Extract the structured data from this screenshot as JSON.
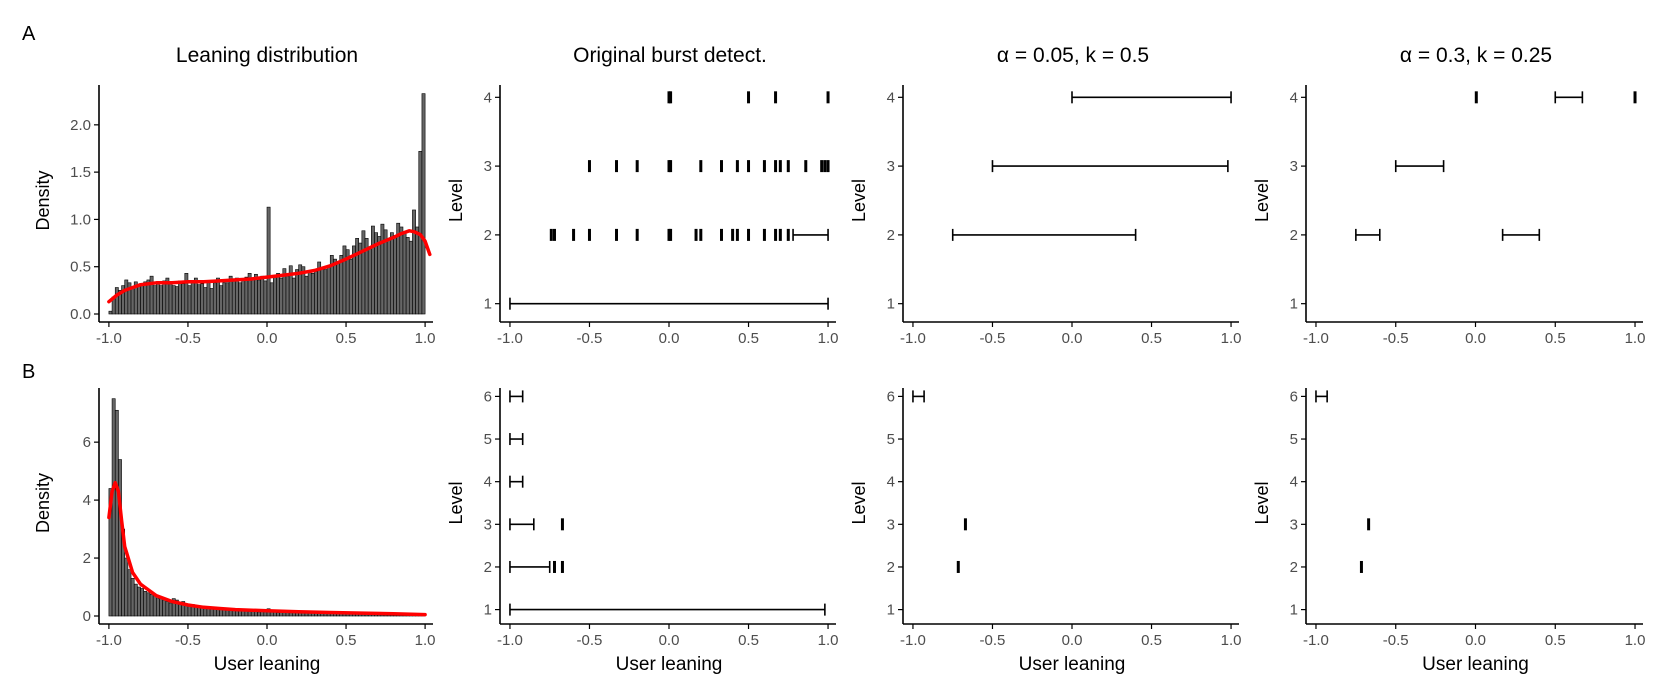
{
  "panel_labels": [
    "A",
    "B"
  ],
  "column_titles": [
    "Leaning distribution",
    "Original burst detect.",
    "α = 0.05, k = 0.5",
    "α = 0.3, k = 0.25"
  ],
  "colors": {
    "bar_fill": "#666666",
    "density_curve": "#ff0000",
    "axis": "#000000",
    "tick_label": "#4d4d4d"
  },
  "chart_data": [
    {
      "type": "bar",
      "panel": "A",
      "title": "Leaning distribution",
      "xlabel": "",
      "ylabel": "Density",
      "xlim": [
        -1.05,
        1.05
      ],
      "ylim": [
        0,
        2.4
      ],
      "xticks": [
        -1.0,
        -0.5,
        0.0,
        0.5,
        1.0
      ],
      "yticks": [
        0.0,
        0.5,
        1.0,
        1.5,
        2.0
      ],
      "bin_start": -1.0,
      "bin_width": 0.02,
      "values": [
        0.03,
        0.18,
        0.28,
        0.25,
        0.3,
        0.36,
        0.33,
        0.28,
        0.34,
        0.31,
        0.3,
        0.34,
        0.36,
        0.4,
        0.3,
        0.32,
        0.3,
        0.35,
        0.38,
        0.33,
        0.3,
        0.29,
        0.35,
        0.32,
        0.43,
        0.3,
        0.33,
        0.38,
        0.31,
        0.32,
        0.28,
        0.35,
        0.27,
        0.33,
        0.38,
        0.3,
        0.33,
        0.33,
        0.4,
        0.35,
        0.38,
        0.33,
        0.37,
        0.39,
        0.43,
        0.37,
        0.42,
        0.36,
        0.4,
        0.35,
        1.13,
        0.33,
        0.4,
        0.43,
        0.38,
        0.48,
        0.4,
        0.51,
        0.38,
        0.47,
        0.52,
        0.5,
        0.4,
        0.46,
        0.43,
        0.45,
        0.55,
        0.48,
        0.47,
        0.51,
        0.62,
        0.58,
        0.55,
        0.62,
        0.72,
        0.68,
        0.58,
        0.72,
        0.8,
        0.75,
        0.88,
        0.8,
        0.7,
        0.93,
        0.86,
        0.82,
        0.95,
        0.89,
        0.8,
        0.86,
        0.83,
        0.96,
        0.92,
        0.87,
        0.81,
        0.77,
        1.1,
        0.92,
        1.72,
        2.33
      ],
      "density_x": [
        -1.0,
        -0.95,
        -0.9,
        -0.8,
        -0.7,
        -0.6,
        -0.5,
        -0.4,
        -0.3,
        -0.2,
        -0.1,
        0.0,
        0.1,
        0.2,
        0.3,
        0.4,
        0.5,
        0.6,
        0.7,
        0.8,
        0.85,
        0.9,
        0.93,
        0.97,
        1.0,
        1.03
      ],
      "density_y": [
        0.13,
        0.2,
        0.25,
        0.31,
        0.33,
        0.33,
        0.34,
        0.34,
        0.35,
        0.36,
        0.37,
        0.39,
        0.41,
        0.43,
        0.46,
        0.51,
        0.58,
        0.66,
        0.74,
        0.81,
        0.85,
        0.88,
        0.87,
        0.84,
        0.77,
        0.63
      ]
    },
    {
      "type": "interval",
      "panel": "A",
      "title": "Original burst detect.",
      "xlabel": "",
      "ylabel": "Level",
      "xlim": [
        -1.05,
        1.05
      ],
      "ylim": [
        0.85,
        4.15
      ],
      "xticks": [
        -1.0,
        -0.5,
        0.0,
        0.5,
        1.0
      ],
      "yticks": [
        1,
        2,
        3,
        4
      ],
      "intervals": [
        {
          "level": 1,
          "start": -1.0,
          "end": 1.0
        },
        {
          "level": 2,
          "start": -0.74,
          "end": -0.74
        },
        {
          "level": 2,
          "start": -0.72,
          "end": -0.72
        },
        {
          "level": 2,
          "start": -0.6,
          "end": -0.6
        },
        {
          "level": 2,
          "start": -0.5,
          "end": -0.5
        },
        {
          "level": 2,
          "start": -0.33,
          "end": -0.33
        },
        {
          "level": 2,
          "start": -0.2,
          "end": -0.2
        },
        {
          "level": 2,
          "start": 0.0,
          "end": 0.0
        },
        {
          "level": 2,
          "start": 0.01,
          "end": 0.01
        },
        {
          "level": 2,
          "start": 0.17,
          "end": 0.17
        },
        {
          "level": 2,
          "start": 0.2,
          "end": 0.2
        },
        {
          "level": 2,
          "start": 0.33,
          "end": 0.33
        },
        {
          "level": 2,
          "start": 0.4,
          "end": 0.4
        },
        {
          "level": 2,
          "start": 0.43,
          "end": 0.43
        },
        {
          "level": 2,
          "start": 0.5,
          "end": 0.5
        },
        {
          "level": 2,
          "start": 0.6,
          "end": 0.6
        },
        {
          "level": 2,
          "start": 0.67,
          "end": 0.67
        },
        {
          "level": 2,
          "start": 0.7,
          "end": 0.7
        },
        {
          "level": 2,
          "start": 0.75,
          "end": 0.75
        },
        {
          "level": 2,
          "start": 0.78,
          "end": 1.0
        },
        {
          "level": 3,
          "start": -0.5,
          "end": -0.5
        },
        {
          "level": 3,
          "start": -0.33,
          "end": -0.33
        },
        {
          "level": 3,
          "start": -0.2,
          "end": -0.2
        },
        {
          "level": 3,
          "start": 0.0,
          "end": 0.0
        },
        {
          "level": 3,
          "start": 0.01,
          "end": 0.01
        },
        {
          "level": 3,
          "start": 0.2,
          "end": 0.2
        },
        {
          "level": 3,
          "start": 0.33,
          "end": 0.33
        },
        {
          "level": 3,
          "start": 0.43,
          "end": 0.43
        },
        {
          "level": 3,
          "start": 0.5,
          "end": 0.5
        },
        {
          "level": 3,
          "start": 0.6,
          "end": 0.6
        },
        {
          "level": 3,
          "start": 0.67,
          "end": 0.67
        },
        {
          "level": 3,
          "start": 0.7,
          "end": 0.7
        },
        {
          "level": 3,
          "start": 0.75,
          "end": 0.75
        },
        {
          "level": 3,
          "start": 0.86,
          "end": 0.86
        },
        {
          "level": 3,
          "start": 0.96,
          "end": 0.96
        },
        {
          "level": 3,
          "start": 0.98,
          "end": 0.98
        },
        {
          "level": 3,
          "start": 1.0,
          "end": 1.0
        },
        {
          "level": 4,
          "start": 0.0,
          "end": 0.0
        },
        {
          "level": 4,
          "start": 0.01,
          "end": 0.01
        },
        {
          "level": 4,
          "start": 0.5,
          "end": 0.5
        },
        {
          "level": 4,
          "start": 0.67,
          "end": 0.67
        },
        {
          "level": 4,
          "start": 1.0,
          "end": 1.0
        }
      ]
    },
    {
      "type": "interval",
      "panel": "A",
      "title": "α = 0.05, k = 0.5",
      "xlabel": "",
      "ylabel": "Level",
      "xlim": [
        -1.05,
        1.05
      ],
      "ylim": [
        0.85,
        4.15
      ],
      "xticks": [
        -1.0,
        -0.5,
        0.0,
        0.5,
        1.0
      ],
      "yticks": [
        1,
        2,
        3,
        4
      ],
      "intervals": [
        {
          "level": 2,
          "start": -0.75,
          "end": 0.4
        },
        {
          "level": 3,
          "start": -0.5,
          "end": 0.98
        },
        {
          "level": 4,
          "start": 0.0,
          "end": 1.0
        }
      ]
    },
    {
      "type": "interval",
      "panel": "A",
      "title": "α = 0.3, k = 0.25",
      "xlabel": "",
      "ylabel": "Level",
      "xlim": [
        -1.05,
        1.05
      ],
      "ylim": [
        0.85,
        4.15
      ],
      "xticks": [
        -1.0,
        -0.5,
        0.0,
        0.5,
        1.0
      ],
      "yticks": [
        1,
        2,
        3,
        4
      ],
      "intervals": [
        {
          "level": 2,
          "start": -0.75,
          "end": -0.6
        },
        {
          "level": 2,
          "start": 0.17,
          "end": 0.4
        },
        {
          "level": 3,
          "start": -0.5,
          "end": -0.2
        },
        {
          "level": 4,
          "start": 0.0,
          "end": 0.01
        },
        {
          "level": 4,
          "start": 0.5,
          "end": 0.67
        },
        {
          "level": 4,
          "start": 1.0,
          "end": 1.0
        }
      ]
    },
    {
      "type": "bar",
      "panel": "B",
      "title": "",
      "xlabel": "User leaning",
      "ylabel": "Density",
      "xlim": [
        -1.05,
        1.05
      ],
      "ylim": [
        0,
        7.8
      ],
      "xticks": [
        -1.0,
        -0.5,
        0.0,
        0.5,
        1.0
      ],
      "yticks": [
        0,
        2,
        4,
        6
      ],
      "bin_start": -1.0,
      "bin_width": 0.02,
      "values": [
        4.4,
        7.5,
        7.1,
        5.4,
        3.0,
        2.0,
        1.6,
        1.3,
        1.1,
        1.0,
        0.95,
        0.85,
        0.8,
        0.75,
        0.7,
        0.6,
        0.65,
        0.55,
        0.5,
        0.45,
        0.6,
        0.55,
        0.4,
        0.5,
        0.42,
        0.35,
        0.4,
        0.32,
        0.3,
        0.35,
        0.25,
        0.3,
        0.28,
        0.25,
        0.25,
        0.3,
        0.22,
        0.25,
        0.2,
        0.2,
        0.18,
        0.2,
        0.17,
        0.22,
        0.16,
        0.15,
        0.18,
        0.14,
        0.15,
        0.14,
        0.25,
        0.13,
        0.14,
        0.12,
        0.13,
        0.12,
        0.12,
        0.11,
        0.13,
        0.11,
        0.1,
        0.12,
        0.1,
        0.11,
        0.1,
        0.12,
        0.1,
        0.09,
        0.1,
        0.09,
        0.08,
        0.1,
        0.08,
        0.08,
        0.09,
        0.08,
        0.07,
        0.08,
        0.07,
        0.07,
        0.08,
        0.07,
        0.06,
        0.07,
        0.06,
        0.06,
        0.07,
        0.06,
        0.06,
        0.05,
        0.06,
        0.05,
        0.05,
        0.06,
        0.05,
        0.05,
        0.04,
        0.05,
        0.04,
        0.04
      ],
      "density_x": [
        -1.0,
        -0.98,
        -0.96,
        -0.94,
        -0.92,
        -0.9,
        -0.85,
        -0.8,
        -0.75,
        -0.7,
        -0.6,
        -0.5,
        -0.4,
        -0.3,
        -0.2,
        0.0,
        0.2,
        0.4,
        0.6,
        0.8,
        1.0
      ],
      "density_y": [
        3.4,
        4.3,
        4.6,
        4.3,
        3.3,
        2.4,
        1.5,
        1.1,
        0.9,
        0.7,
        0.5,
        0.38,
        0.3,
        0.26,
        0.22,
        0.18,
        0.15,
        0.12,
        0.1,
        0.08,
        0.05
      ]
    },
    {
      "type": "interval",
      "panel": "B",
      "title": "",
      "xlabel": "User leaning",
      "ylabel": "Level",
      "xlim": [
        -1.05,
        1.05
      ],
      "ylim": [
        0.85,
        6.15
      ],
      "xticks": [
        -1.0,
        -0.5,
        0.0,
        0.5,
        1.0
      ],
      "yticks": [
        1,
        2,
        3,
        4,
        5,
        6
      ],
      "intervals": [
        {
          "level": 1,
          "start": -1.0,
          "end": 0.98
        },
        {
          "level": 2,
          "start": -1.0,
          "end": -0.75
        },
        {
          "level": 2,
          "start": -0.72,
          "end": -0.72
        },
        {
          "level": 2,
          "start": -0.67,
          "end": -0.67
        },
        {
          "level": 3,
          "start": -1.0,
          "end": -0.85
        },
        {
          "level": 3,
          "start": -0.67,
          "end": -0.67
        },
        {
          "level": 4,
          "start": -1.0,
          "end": -0.92
        },
        {
          "level": 5,
          "start": -1.0,
          "end": -0.92
        },
        {
          "level": 6,
          "start": -1.0,
          "end": -0.92
        }
      ]
    },
    {
      "type": "interval",
      "panel": "B",
      "title": "",
      "xlabel": "User leaning",
      "ylabel": "Level",
      "xlim": [
        -1.05,
        1.05
      ],
      "ylim": [
        0.85,
        6.15
      ],
      "xticks": [
        -1.0,
        -0.5,
        0.0,
        0.5,
        1.0
      ],
      "yticks": [
        1,
        2,
        3,
        4,
        5,
        6
      ],
      "intervals": [
        {
          "level": 2,
          "start": -0.72,
          "end": -0.71
        },
        {
          "level": 3,
          "start": -0.67,
          "end": -0.67
        },
        {
          "level": 6,
          "start": -1.0,
          "end": -0.93
        }
      ]
    },
    {
      "type": "interval",
      "panel": "B",
      "title": "",
      "xlabel": "User leaning",
      "ylabel": "Level",
      "xlim": [
        -1.05,
        1.05
      ],
      "ylim": [
        0.85,
        6.15
      ],
      "xticks": [
        -1.0,
        -0.5,
        0.0,
        0.5,
        1.0
      ],
      "yticks": [
        1,
        2,
        3,
        4,
        5,
        6
      ],
      "intervals": [
        {
          "level": 2,
          "start": -0.72,
          "end": -0.71
        },
        {
          "level": 3,
          "start": -0.67,
          "end": -0.67
        },
        {
          "level": 6,
          "start": -1.0,
          "end": -0.93
        }
      ]
    }
  ]
}
